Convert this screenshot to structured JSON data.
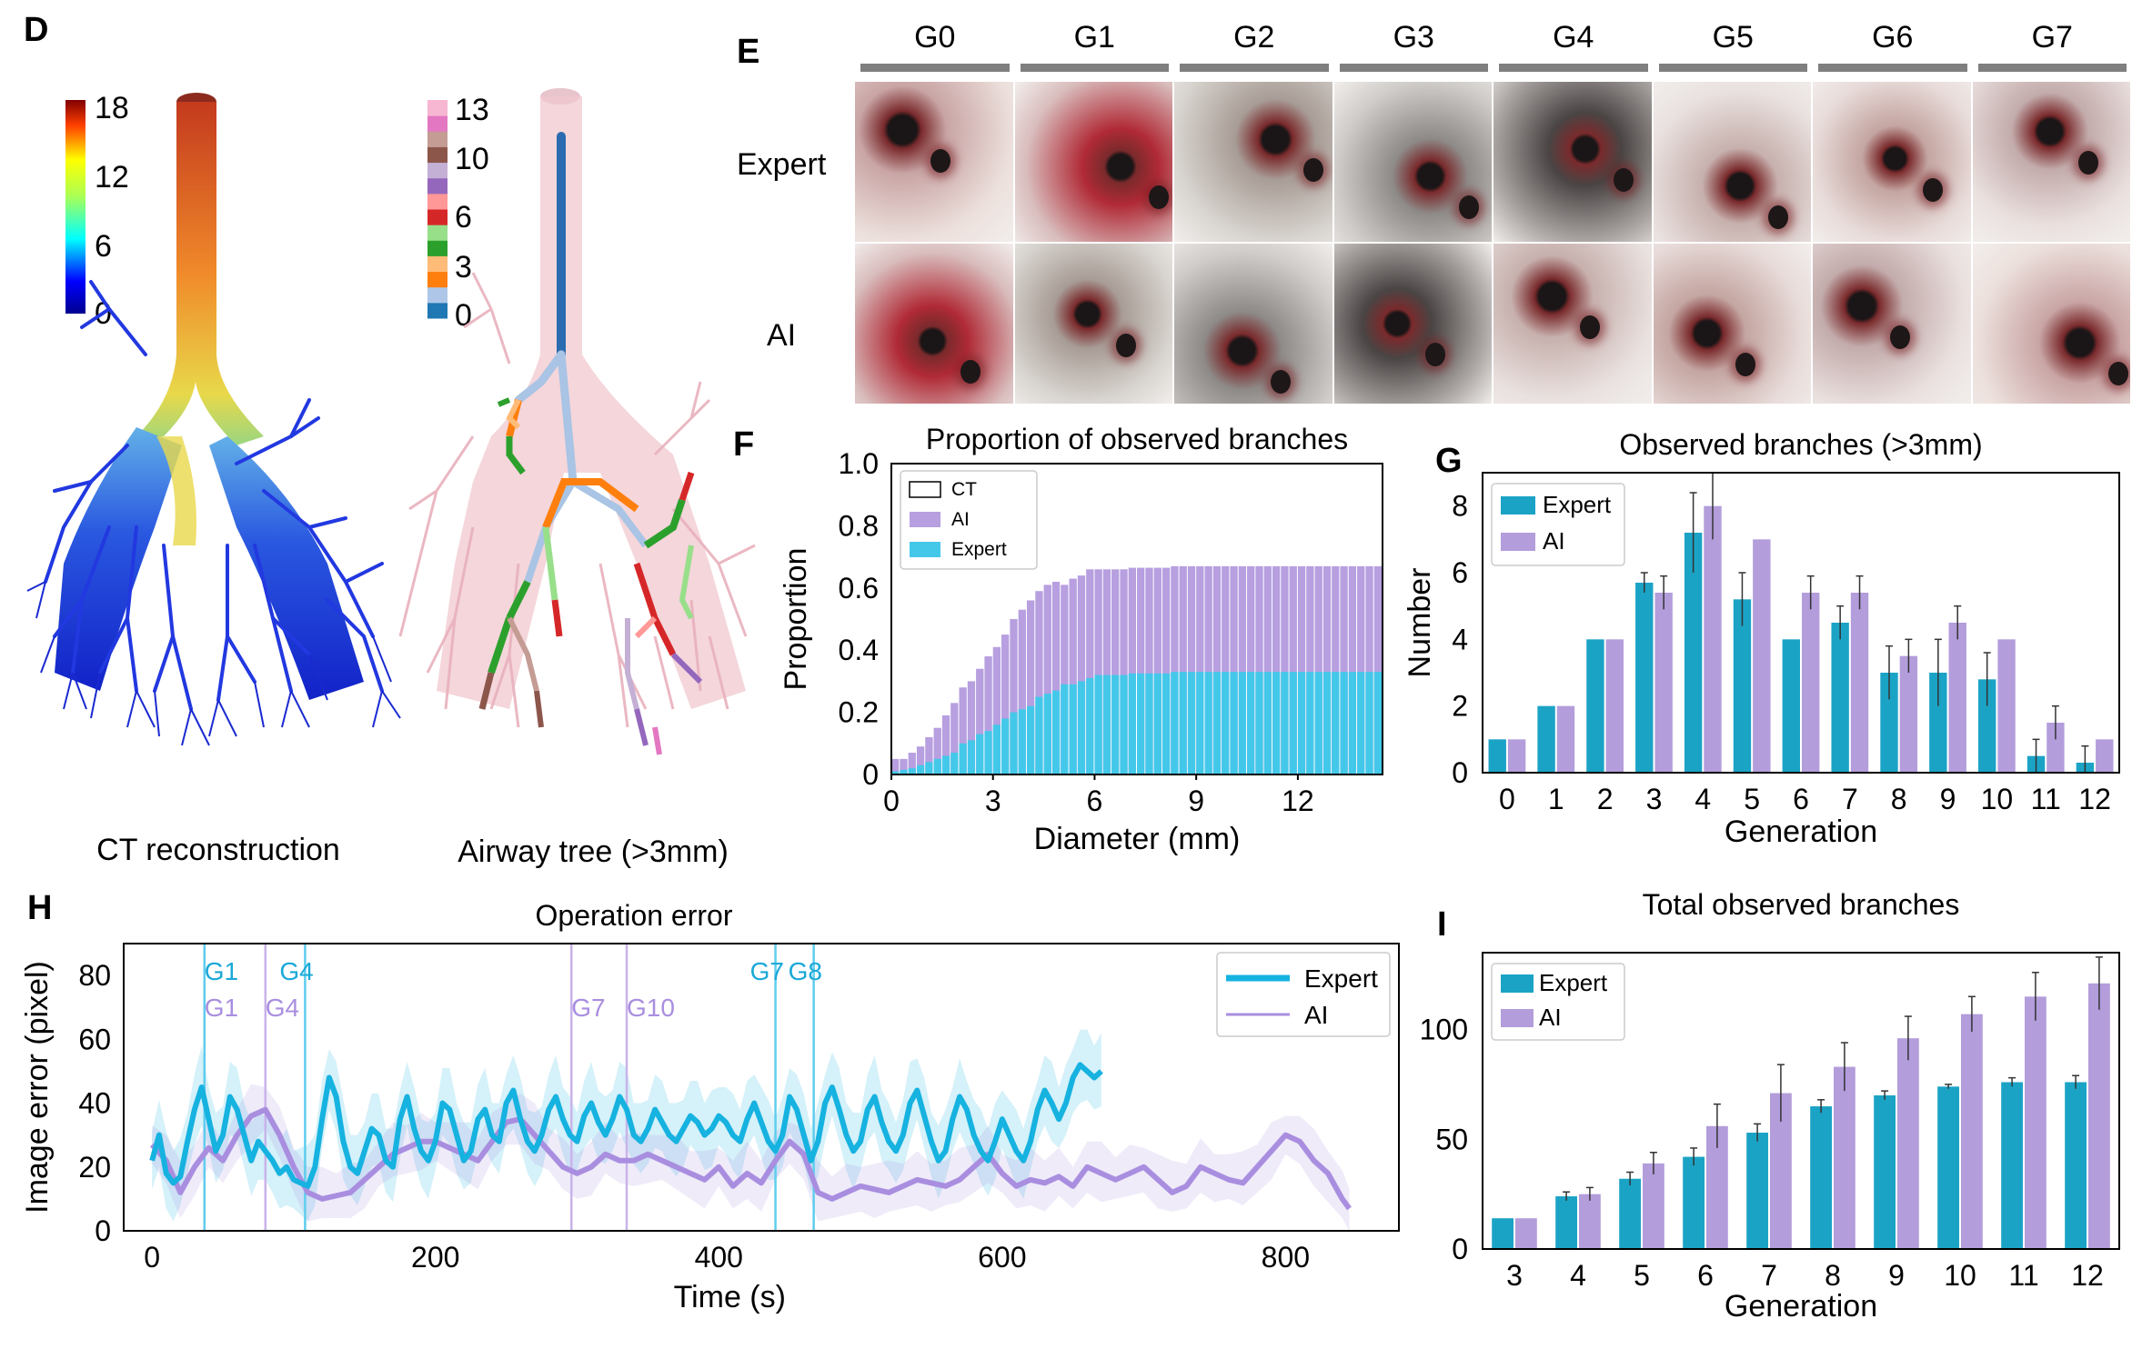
{
  "panel_letters": {
    "D": "D",
    "E": "E",
    "F": "F",
    "G": "G",
    "H": "H",
    "I": "I"
  },
  "panel_d": {
    "ct_label": "CT reconstruction",
    "tree_label": "Airway tree (>3mm)",
    "colorbar_ticks": [
      "18",
      "12",
      "6",
      "0"
    ],
    "generation_ticks": [
      "13",
      "10",
      "6",
      "3",
      "0"
    ],
    "generation_colors": [
      "#1f77b4",
      "#aec7e8",
      "#ff7f0e",
      "#ffbb78",
      "#2ca02c",
      "#98df8a",
      "#d62728",
      "#ff9896",
      "#9467bd",
      "#c5b0d5",
      "#8c564b",
      "#c49c94",
      "#e377c2",
      "#f7b6d2"
    ]
  },
  "panel_e": {
    "columns": [
      "G0",
      "G1",
      "G2",
      "G3",
      "G4",
      "G5",
      "G6",
      "G7"
    ],
    "rows": [
      "Expert",
      "AI"
    ]
  },
  "colors": {
    "expert": "#1ba3c6",
    "ai": "#b39ddb",
    "expert_hist": "#44c8ea",
    "ai_hist": "#b79fe0",
    "ai_line": "#a98ee0",
    "expert_line": "#16b2e0"
  },
  "chart_data": [
    {
      "id": "F",
      "type": "bar",
      "title": "Proportion of observed branches",
      "xlabel": "Diameter (mm)",
      "ylabel": "Proportion",
      "xlim": [
        0,
        14.5
      ],
      "ylim": [
        0,
        1.0
      ],
      "xticks": [
        "0",
        "3",
        "6",
        "9",
        "12"
      ],
      "yticks": [
        "0",
        "0.2",
        "0.4",
        "0.6",
        "0.8",
        "1.0"
      ],
      "legend": [
        "CT",
        "AI",
        "Expert"
      ],
      "bin_width": 0.25,
      "series": [
        {
          "name": "AI",
          "values": [
            0.05,
            0.05,
            0.07,
            0.09,
            0.12,
            0.15,
            0.19,
            0.23,
            0.28,
            0.3,
            0.34,
            0.38,
            0.41,
            0.45,
            0.5,
            0.53,
            0.56,
            0.59,
            0.61,
            0.62,
            0.61,
            0.63,
            0.64,
            0.66,
            0.66,
            0.66,
            0.66,
            0.66,
            0.665,
            0.665,
            0.665,
            0.665,
            0.665,
            0.67,
            0.67,
            0.67,
            0.67,
            0.67,
            0.67,
            0.67,
            0.67,
            0.67,
            0.67,
            0.67,
            0.67,
            0.67,
            0.67,
            0.67,
            0.67,
            0.67,
            0.67,
            0.67,
            0.67,
            0.67,
            0.67,
            0.67,
            0.67,
            0.67
          ]
        },
        {
          "name": "Expert",
          "values": [
            0.01,
            0.015,
            0.02,
            0.03,
            0.04,
            0.05,
            0.06,
            0.07,
            0.1,
            0.11,
            0.13,
            0.14,
            0.16,
            0.18,
            0.2,
            0.21,
            0.22,
            0.25,
            0.26,
            0.27,
            0.29,
            0.29,
            0.3,
            0.31,
            0.32,
            0.32,
            0.32,
            0.32,
            0.325,
            0.325,
            0.325,
            0.325,
            0.325,
            0.33,
            0.33,
            0.33,
            0.33,
            0.33,
            0.33,
            0.33,
            0.33,
            0.33,
            0.33,
            0.33,
            0.33,
            0.33,
            0.33,
            0.33,
            0.33,
            0.33,
            0.33,
            0.33,
            0.33,
            0.33,
            0.33,
            0.33,
            0.33,
            0.33
          ]
        }
      ]
    },
    {
      "id": "G",
      "type": "bar",
      "title": "Observed branches (>3mm)",
      "xlabel": "Generation",
      "ylabel": "Number",
      "categories": [
        "0",
        "1",
        "2",
        "3",
        "4",
        "5",
        "6",
        "7",
        "8",
        "9",
        "10",
        "11",
        "12"
      ],
      "ylim": [
        0,
        9
      ],
      "yticks": [
        "0",
        "2",
        "4",
        "6",
        "8"
      ],
      "legend": [
        "Expert",
        "AI"
      ],
      "series": [
        {
          "name": "Expert",
          "values": [
            1,
            2,
            4,
            5.7,
            7.2,
            5.2,
            4,
            4.5,
            3,
            3,
            2.8,
            0.5,
            0.3
          ],
          "err": [
            0,
            0,
            0,
            0.3,
            1.2,
            0.8,
            0,
            0.5,
            0.8,
            1,
            0.8,
            0.5,
            0.5
          ]
        },
        {
          "name": "AI",
          "values": [
            1,
            2,
            4,
            5.4,
            8,
            7,
            5.4,
            5.4,
            3.5,
            4.5,
            4,
            1.5,
            1
          ],
          "err": [
            0,
            0,
            0,
            0.5,
            1,
            0,
            0.5,
            0.5,
            0.5,
            0.5,
            0,
            0.5,
            0
          ]
        }
      ]
    },
    {
      "id": "H",
      "type": "line",
      "title": "Operation error",
      "xlabel": "Time (s)",
      "ylabel": "Image error (pixel)",
      "xlim": [
        -20,
        880
      ],
      "ylim": [
        0,
        90
      ],
      "xticks": [
        "0",
        "200",
        "400",
        "600",
        "800"
      ],
      "yticks": [
        "0",
        "20",
        "40",
        "60",
        "80"
      ],
      "legend": [
        "Expert",
        "AI"
      ],
      "expert_marks": [
        {
          "t": 37,
          "label": "G1"
        },
        {
          "t": 108,
          "label": "G4"
        },
        {
          "t": 440,
          "label": "G7"
        },
        {
          "t": 467,
          "label": "G8"
        }
      ],
      "ai_marks": [
        {
          "t": 37,
          "label": "G1"
        },
        {
          "t": 80,
          "label": "G4"
        },
        {
          "t": 296,
          "label": "G7"
        },
        {
          "t": 335,
          "label": "G10"
        }
      ],
      "series": [
        {
          "name": "Expert",
          "x": [
            0,
            5,
            10,
            15,
            20,
            25,
            30,
            35,
            40,
            45,
            50,
            55,
            60,
            65,
            70,
            75,
            80,
            85,
            90,
            95,
            100,
            105,
            110,
            115,
            120,
            125,
            130,
            135,
            140,
            145,
            150,
            155,
            160,
            165,
            170,
            175,
            180,
            185,
            190,
            195,
            200,
            205,
            210,
            215,
            220,
            225,
            230,
            235,
            240,
            245,
            250,
            255,
            260,
            265,
            270,
            275,
            280,
            285,
            290,
            295,
            300,
            305,
            310,
            315,
            320,
            325,
            330,
            335,
            340,
            345,
            350,
            355,
            360,
            365,
            370,
            375,
            380,
            385,
            390,
            395,
            400,
            405,
            410,
            415,
            420,
            425,
            430,
            435,
            440,
            445,
            450,
            455,
            460,
            465,
            470,
            475,
            480,
            485,
            490,
            495,
            500,
            505,
            510,
            515,
            520,
            525,
            530,
            535,
            540,
            545,
            550,
            555,
            560,
            565,
            570,
            575,
            580,
            585,
            590,
            595,
            600,
            605,
            610,
            615,
            620,
            625,
            630,
            635,
            640,
            645,
            650,
            655,
            660,
            665,
            670
          ],
          "values": [
            22,
            30,
            18,
            15,
            17,
            28,
            38,
            45,
            35,
            25,
            30,
            42,
            38,
            30,
            22,
            28,
            25,
            22,
            18,
            20,
            16,
            15,
            14,
            20,
            35,
            48,
            42,
            28,
            20,
            18,
            25,
            32,
            30,
            22,
            20,
            35,
            42,
            32,
            25,
            22,
            28,
            40,
            38,
            30,
            22,
            25,
            35,
            38,
            30,
            28,
            40,
            44,
            35,
            28,
            25,
            30,
            38,
            42,
            35,
            30,
            28,
            36,
            40,
            34,
            30,
            35,
            42,
            38,
            30,
            28,
            32,
            38,
            34,
            30,
            28,
            32,
            36,
            34,
            30,
            32,
            36,
            34,
            30,
            28,
            35,
            40,
            34,
            28,
            25,
            30,
            42,
            38,
            30,
            22,
            28,
            40,
            45,
            38,
            30,
            25,
            28,
            38,
            42,
            34,
            28,
            25,
            30,
            40,
            44,
            36,
            28,
            22,
            25,
            35,
            42,
            38,
            30,
            25,
            22,
            28,
            35,
            30,
            25,
            22,
            28,
            38,
            44,
            40,
            35,
            40,
            48,
            52,
            50,
            48,
            50
          ]
        },
        {
          "name": "AI",
          "x": [
            0,
            10,
            20,
            30,
            40,
            50,
            60,
            70,
            80,
            90,
            100,
            110,
            120,
            130,
            140,
            150,
            160,
            170,
            180,
            190,
            200,
            210,
            220,
            230,
            240,
            250,
            260,
            270,
            280,
            290,
            300,
            310,
            320,
            330,
            340,
            350,
            360,
            370,
            380,
            390,
            400,
            410,
            420,
            430,
            440,
            450,
            460,
            470,
            480,
            490,
            500,
            510,
            520,
            530,
            540,
            550,
            560,
            570,
            580,
            590,
            600,
            610,
            620,
            630,
            640,
            650,
            660,
            670,
            680,
            690,
            700,
            710,
            720,
            730,
            740,
            750,
            760,
            770,
            780,
            790,
            800,
            810,
            820,
            830,
            840,
            845
          ],
          "values": [
            27,
            22,
            12,
            20,
            26,
            22,
            30,
            36,
            38,
            30,
            20,
            12,
            10,
            11,
            12,
            16,
            20,
            24,
            26,
            28,
            28,
            26,
            24,
            22,
            28,
            34,
            35,
            30,
            25,
            20,
            18,
            20,
            24,
            22,
            22,
            24,
            22,
            20,
            18,
            16,
            20,
            14,
            18,
            15,
            22,
            28,
            24,
            12,
            10,
            12,
            14,
            13,
            12,
            14,
            16,
            15,
            14,
            16,
            20,
            24,
            18,
            14,
            16,
            15,
            17,
            14,
            20,
            18,
            16,
            18,
            20,
            16,
            12,
            14,
            20,
            18,
            16,
            15,
            20,
            25,
            30,
            28,
            22,
            18,
            10,
            7
          ]
        }
      ]
    },
    {
      "id": "I",
      "type": "bar",
      "title": "Total observed branches",
      "xlabel": "Generation",
      "ylabel": "",
      "categories": [
        "3",
        "4",
        "5",
        "6",
        "7",
        "8",
        "9",
        "10",
        "11",
        "12"
      ],
      "ylim": [
        0,
        135
      ],
      "yticks": [
        "0",
        "50",
        "100"
      ],
      "legend": [
        "Expert",
        "AI"
      ],
      "series": [
        {
          "name": "Expert",
          "values": [
            14,
            24,
            32,
            42,
            53,
            65,
            70,
            74,
            76,
            76
          ],
          "err": [
            0,
            2,
            3,
            4,
            4,
            3,
            2,
            1,
            2,
            3
          ]
        },
        {
          "name": "AI",
          "values": [
            14,
            25,
            39,
            56,
            71,
            83,
            96,
            107,
            115,
            121
          ],
          "err": [
            0,
            3,
            5,
            10,
            13,
            11,
            10,
            8,
            11,
            12
          ]
        }
      ]
    }
  ]
}
